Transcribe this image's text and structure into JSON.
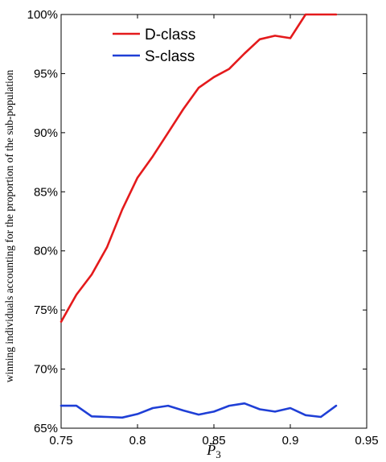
{
  "chart_data": {
    "type": "line",
    "xlabel": "P̄3",
    "ylabel": "winning individuals accounting for the proportion of the sub-population",
    "xlim": [
      0.75,
      0.95
    ],
    "ylim": [
      65,
      100
    ],
    "x_ticks": [
      0.75,
      0.8,
      0.85,
      0.9,
      0.95
    ],
    "x_tick_labels": [
      "0.75",
      "0.8",
      "0.85",
      "0.9",
      "0.95"
    ],
    "y_ticks": [
      65,
      70,
      75,
      80,
      85,
      90,
      95,
      100
    ],
    "y_tick_labels": [
      "65%",
      "70%",
      "75%",
      "80%",
      "85%",
      "90%",
      "95%",
      "100%"
    ],
    "grid": false,
    "legend_position": "top-left",
    "series": [
      {
        "name": "D-class",
        "color": "#e41a1c",
        "x": [
          0.75,
          0.76,
          0.77,
          0.78,
          0.79,
          0.8,
          0.81,
          0.82,
          0.83,
          0.84,
          0.85,
          0.86,
          0.87,
          0.88,
          0.89,
          0.9,
          0.91,
          0.92,
          0.93
        ],
        "y": [
          74.0,
          76.3,
          78.0,
          80.3,
          83.5,
          86.2,
          88.0,
          90.0,
          92.0,
          93.8,
          94.7,
          95.4,
          96.7,
          97.9,
          98.2,
          98.0,
          100.0,
          100.0,
          100.0
        ]
      },
      {
        "name": "S-class",
        "color": "#1f3fd6",
        "x": [
          0.75,
          0.76,
          0.77,
          0.78,
          0.79,
          0.8,
          0.81,
          0.82,
          0.83,
          0.84,
          0.85,
          0.86,
          0.87,
          0.88,
          0.89,
          0.9,
          0.91,
          0.92,
          0.93
        ],
        "y": [
          66.9,
          66.9,
          66.0,
          65.95,
          65.9,
          66.2,
          66.7,
          66.9,
          66.5,
          66.15,
          66.4,
          66.9,
          67.1,
          66.6,
          66.4,
          66.7,
          66.1,
          65.95,
          66.9
        ]
      }
    ]
  }
}
